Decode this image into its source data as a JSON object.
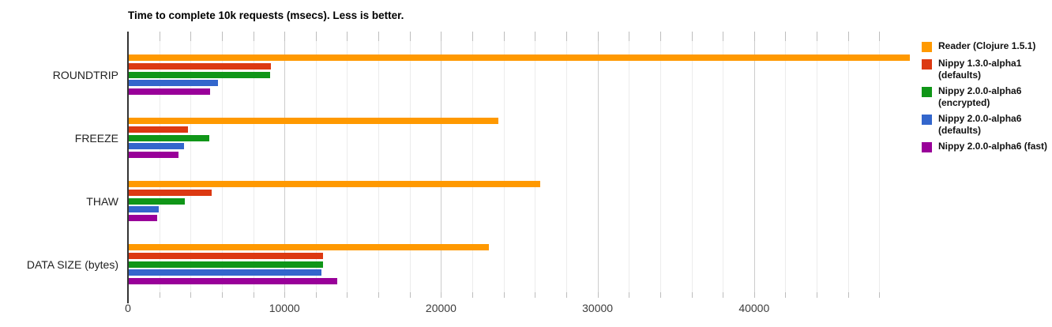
{
  "chart_data": {
    "type": "bar",
    "orientation": "horizontal",
    "title": "Time to complete 10k requests (msecs). Less is better.",
    "categories": [
      "ROUNDTRIP",
      "FREEZE",
      "THAW",
      "DATA SIZE (bytes)"
    ],
    "series": [
      {
        "name": "Reader (Clojure 1.5.1)",
        "color": "#FF9900",
        "values": [
          49900,
          23600,
          26300,
          23000
        ]
      },
      {
        "name": "Nippy 1.3.0-alpha1 (defaults)",
        "color": "#DC3912",
        "values": [
          9100,
          3800,
          5300,
          12400
        ]
      },
      {
        "name": "Nippy 2.0.0-alpha6 (encrypted)",
        "color": "#109618",
        "values": [
          9050,
          5150,
          3590,
          12400
        ]
      },
      {
        "name": "Nippy 2.0.0-alpha6 (defaults)",
        "color": "#3366CC",
        "values": [
          5700,
          3540,
          1920,
          12300
        ]
      },
      {
        "name": "Nippy 2.0.0-alpha6 (fast)",
        "color": "#990099",
        "values": [
          5200,
          3170,
          1820,
          13320
        ]
      }
    ],
    "xlim": [
      0,
      50000
    ],
    "x_tick_values": [
      0,
      10000,
      20000,
      30000,
      40000
    ],
    "x_tick_labels": [
      "0",
      "10000",
      "20000",
      "30000",
      "40000"
    ],
    "minor_grid_step": 2000,
    "major_grid_step": 10000,
    "grid": true,
    "legend_position": "right",
    "legend": [
      {
        "lines": [
          "Reader (Clojure 1.5.1)"
        ],
        "color": "#FF9900"
      },
      {
        "lines": [
          "Nippy 1.3.0-alpha1",
          "(defaults)"
        ],
        "color": "#DC3912"
      },
      {
        "lines": [
          "Nippy 2.0.0-alpha6",
          "(encrypted)"
        ],
        "color": "#109618"
      },
      {
        "lines": [
          "Nippy 2.0.0-alpha6",
          "(defaults)"
        ],
        "color": "#3366CC"
      },
      {
        "lines": [
          "Nippy 2.0.0-alpha6 (fast)"
        ],
        "color": "#990099"
      }
    ],
    "colors": {
      "axis": "#333333",
      "grid_minor": "#ececec",
      "grid_major": "#cccccc",
      "text": "#222222"
    }
  }
}
